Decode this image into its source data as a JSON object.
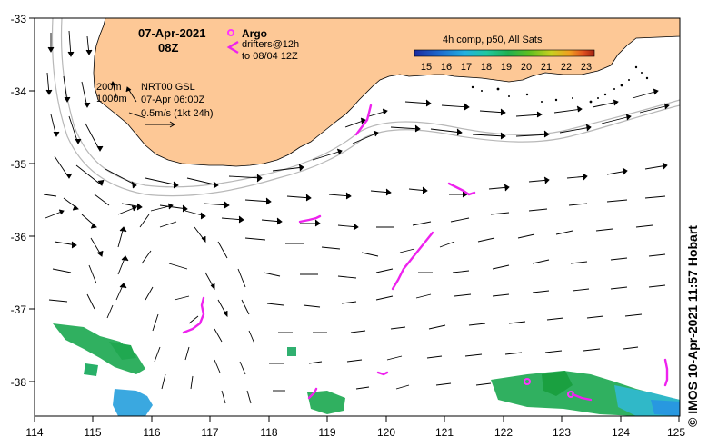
{
  "header": {
    "date": "07-Apr-2021",
    "time": "08Z"
  },
  "legend": {
    "argo_label": "Argo",
    "drifters_line1": "drifters@12h",
    "drifters_line2": "to 08/04 12Z",
    "depth_200": "200m",
    "depth_1000": "1000m",
    "velocity_source": "NRT00 GSL",
    "velocity_time": "07-Apr 06:00Z",
    "velocity_scale": "0.5m/s (1kt 24h)",
    "colorbar_title": "4h comp, p50, All Sats",
    "colorbar_ticks": [
      "15",
      "16",
      "17",
      "18",
      "19",
      "20",
      "21",
      "22",
      "23"
    ],
    "colorbar_colors": [
      "#1a2aa0",
      "#1e6fd0",
      "#22b0e0",
      "#20c8a0",
      "#20b050",
      "#60c020",
      "#c8d020",
      "#f0a020",
      "#e05020",
      "#a02010"
    ]
  },
  "map": {
    "lat_ticks": [
      "-33",
      "-34",
      "-35",
      "-36",
      "-37",
      "-38"
    ],
    "lon_ticks": [
      "114",
      "115",
      "116",
      "117",
      "118",
      "119",
      "120",
      "121",
      "122",
      "123",
      "124",
      "125"
    ],
    "land_color": "#fdc896",
    "argo_color": "#ff33ff",
    "drifter_color": "#ee22ee"
  },
  "credit": "© IMOS 10-Apr-2021 11:57 Hobart"
}
